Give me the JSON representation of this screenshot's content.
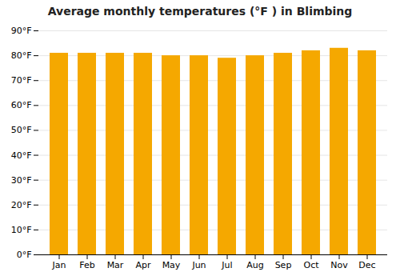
{
  "chart_data": {
    "type": "bar",
    "title": "Average monthly temperatures (°F ) in Blimbing",
    "categories": [
      "Jan",
      "Feb",
      "Mar",
      "Apr",
      "May",
      "Jun",
      "Jul",
      "Aug",
      "Sep",
      "Oct",
      "Nov",
      "Dec"
    ],
    "values": [
      81,
      81,
      81,
      81,
      80,
      80,
      79,
      80,
      81,
      82,
      83,
      82
    ],
    "color": "#F5A800",
    "ylim": [
      0,
      90
    ],
    "yticks": [
      {
        "value": 0,
        "label": "0°F"
      },
      {
        "value": 10,
        "label": "10°F"
      },
      {
        "value": 20,
        "label": "20°F"
      },
      {
        "value": 30,
        "label": "30°F"
      },
      {
        "value": 40,
        "label": "40°F"
      },
      {
        "value": 50,
        "label": "50°F"
      },
      {
        "value": 60,
        "label": "60°F"
      },
      {
        "value": 70,
        "label": "70°F"
      },
      {
        "value": 80,
        "label": "80°F"
      },
      {
        "value": 90,
        "label": "90°F"
      }
    ],
    "grid": true
  }
}
